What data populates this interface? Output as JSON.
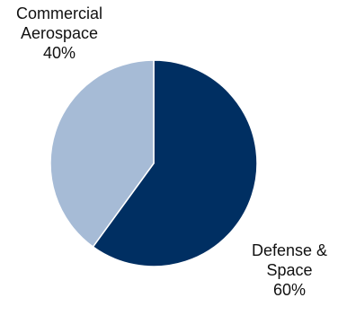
{
  "chart_data": {
    "type": "pie",
    "title": "",
    "slices": [
      {
        "label_lines": [
          "Defense &",
          "Space"
        ],
        "value": 60,
        "value_label": "60%",
        "color": "#002f62"
      },
      {
        "label_lines": [
          "Commercial",
          "Aerospace"
        ],
        "value": 40,
        "value_label": "40%",
        "color": "#a6bbd6"
      }
    ],
    "start_angle": "12 o'clock",
    "direction": "clockwise",
    "legend": "none (labels placed outside slices)"
  }
}
